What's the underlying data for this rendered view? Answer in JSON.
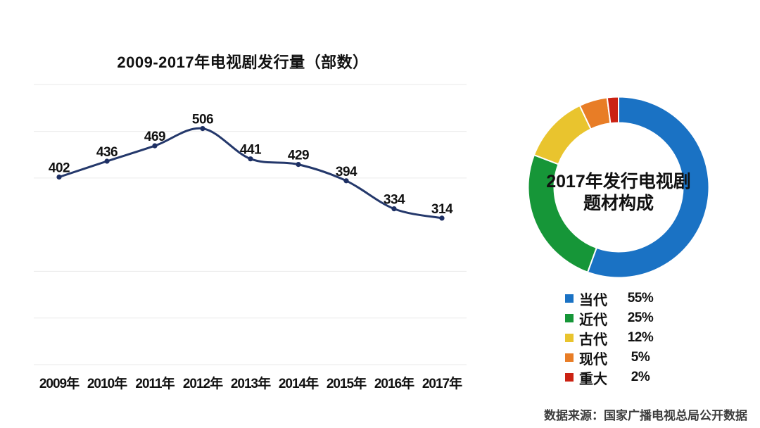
{
  "chart_data": [
    {
      "type": "line",
      "title": "2009-2017年电视剧发行量（部数）",
      "categories": [
        "2009年",
        "2010年",
        "2011年",
        "2012年",
        "2013年",
        "2014年",
        "2015年",
        "2016年",
        "2017年"
      ],
      "values": [
        402,
        436,
        469,
        506,
        441,
        429,
        394,
        334,
        314
      ],
      "xlabel": "",
      "ylabel": "",
      "ylim": [
        0,
        600
      ],
      "grid_lines": [
        0,
        100,
        200,
        400,
        500,
        600
      ],
      "grid": true,
      "legend_position": "none",
      "data_labels": true,
      "line_color": "#24386b",
      "marker_color": "#1d2f63",
      "grid_color": "#eaeaea",
      "label_color": "#111111"
    },
    {
      "type": "pie",
      "subtype": "donut",
      "center_title_lines": [
        "2017年发行电视剧",
        "题材构成"
      ],
      "labels": [
        "当代",
        "近代",
        "古代",
        "现代",
        "重大"
      ],
      "values": [
        55,
        25,
        12,
        5,
        2
      ],
      "percent_labels": [
        "55%",
        "25%",
        "12%",
        "5%",
        "2%"
      ],
      "colors": [
        "#1a72c4",
        "#169638",
        "#e9c42e",
        "#e87d26",
        "#cb2213"
      ],
      "start_angle_deg": 0,
      "direction": "clockwise",
      "legend_position": "bottom"
    }
  ],
  "footer": {
    "source": "数据来源：国家广播电视总局公开数据"
  }
}
